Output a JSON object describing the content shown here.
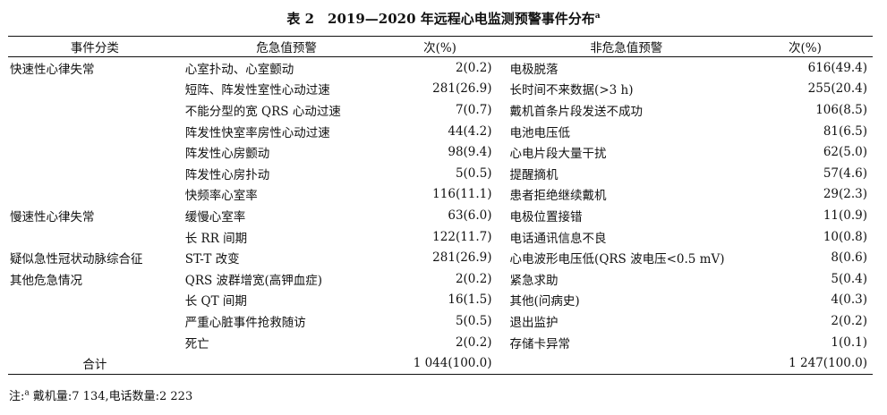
{
  "title": "表 2　2019—2020 年远程心电监测预警事件分布",
  "title_sup": "a",
  "headers": {
    "category": "事件分类",
    "critical": "危急值预警",
    "count1": "次(%)",
    "noncritical": "非危急值预警",
    "count2": "次(%)"
  },
  "rows": [
    {
      "category": "快速性心律失常",
      "critical": "心室扑动、心室颤动",
      "v1": "2(0.2)",
      "noncritical": "电极脱落",
      "v2": "616(49.4)"
    },
    {
      "category": "",
      "critical": "短阵、阵发性室性心动过速",
      "v1": "281(26.9)",
      "noncritical": "长时间不来数据(>3 h)",
      "v2": "255(20.4)"
    },
    {
      "category": "",
      "critical": "不能分型的宽 QRS 心动过速",
      "v1": "7(0.7)",
      "noncritical": "戴机首条片段发送不成功",
      "v2": "106(8.5)"
    },
    {
      "category": "",
      "critical": "阵发性快室率房性心动过速",
      "v1": "44(4.2)",
      "noncritical": "电池电压低",
      "v2": "81(6.5)"
    },
    {
      "category": "",
      "critical": "阵发性心房颤动",
      "v1": "98(9.4)",
      "noncritical": "心电片段大量干扰",
      "v2": "62(5.0)"
    },
    {
      "category": "",
      "critical": "阵发性心房扑动",
      "v1": "5(0.5)",
      "noncritical": "提醒摘机",
      "v2": "57(4.6)"
    },
    {
      "category": "",
      "critical": "快频率心室率",
      "v1": "116(11.1)",
      "noncritical": "患者拒绝继续戴机",
      "v2": "29(2.3)"
    },
    {
      "category": "慢速性心律失常",
      "critical": "缓慢心室率",
      "v1": "63(6.0)",
      "noncritical": "电极位置接错",
      "v2": "11(0.9)"
    },
    {
      "category": "",
      "critical": "长 RR 间期",
      "v1": "122(11.7)",
      "noncritical": "电话通讯信息不良",
      "v2": "10(0.8)"
    },
    {
      "category": "疑似急性冠状动脉综合征",
      "critical": "ST-T 改变",
      "v1": "281(26.9)",
      "noncritical": "心电波形电压低(QRS 波电压<0.5 mV)",
      "v2": "8(0.6)"
    },
    {
      "category": "其他危急情况",
      "critical": "QRS 波群增宽(高钾血症)",
      "v1": "2(0.2)",
      "noncritical": "紧急求助",
      "v2": "5(0.4)"
    },
    {
      "category": "",
      "critical": "长 QT 间期",
      "v1": "16(1.5)",
      "noncritical": "其他(问病史)",
      "v2": "4(0.3)"
    },
    {
      "category": "",
      "critical": "严重心脏事件抢救随访",
      "v1": "5(0.5)",
      "noncritical": "退出监护",
      "v2": "2(0.2)"
    },
    {
      "category": "",
      "critical": "死亡",
      "v1": "2(0.2)",
      "noncritical": "存储卡异常",
      "v2": "1(0.1)"
    }
  ],
  "total": {
    "label": "合计",
    "v1": "1 044(100.0)",
    "v2": "1 247(100.0)"
  },
  "note": {
    "prefix": "注:",
    "sup": "a",
    "text": " 戴机量:7 134,电话数量:2 223"
  }
}
